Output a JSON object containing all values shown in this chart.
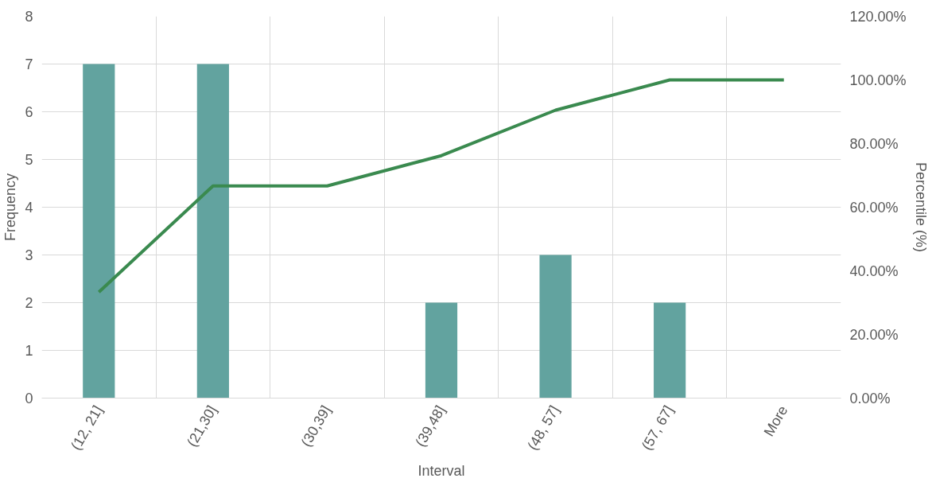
{
  "chart_data": {
    "type": "bar",
    "xlabel": "Interval",
    "ylabel": "Frequency",
    "y2label": "Percentile (%)",
    "categories": [
      "(12, 21]",
      "(21,30]",
      "(30,39]",
      "(39,48]",
      "(48, 57]",
      "(57, 67]",
      "More"
    ],
    "series": [
      {
        "color": "#62a39f",
        "values": [
          7,
          7,
          0,
          2,
          3,
          2,
          0
        ]
      },
      {
        "type": "line",
        "axis": "y2",
        "color": "#3a8a4f",
        "values": [
          33.3,
          66.7,
          66.7,
          76.2,
          90.5,
          100,
          100
        ]
      }
    ],
    "ylim": [
      0,
      8
    ],
    "yticks": [
      0,
      1,
      2,
      3,
      4,
      5,
      6,
      7,
      8
    ],
    "y2lim": [
      0,
      120
    ],
    "y2ticks": [
      {
        "value": 0,
        "label": "0.00%"
      },
      {
        "value": 20,
        "label": "20.00%"
      },
      {
        "value": 40,
        "label": "40.00%"
      },
      {
        "value": 60,
        "label": "60.00%"
      },
      {
        "value": 80,
        "label": "80.00%"
      },
      {
        "value": 100,
        "label": "100.00%"
      },
      {
        "value": 120,
        "label": "120.00%"
      }
    ],
    "grid": true,
    "marker": "none",
    "line_style": "solid"
  }
}
